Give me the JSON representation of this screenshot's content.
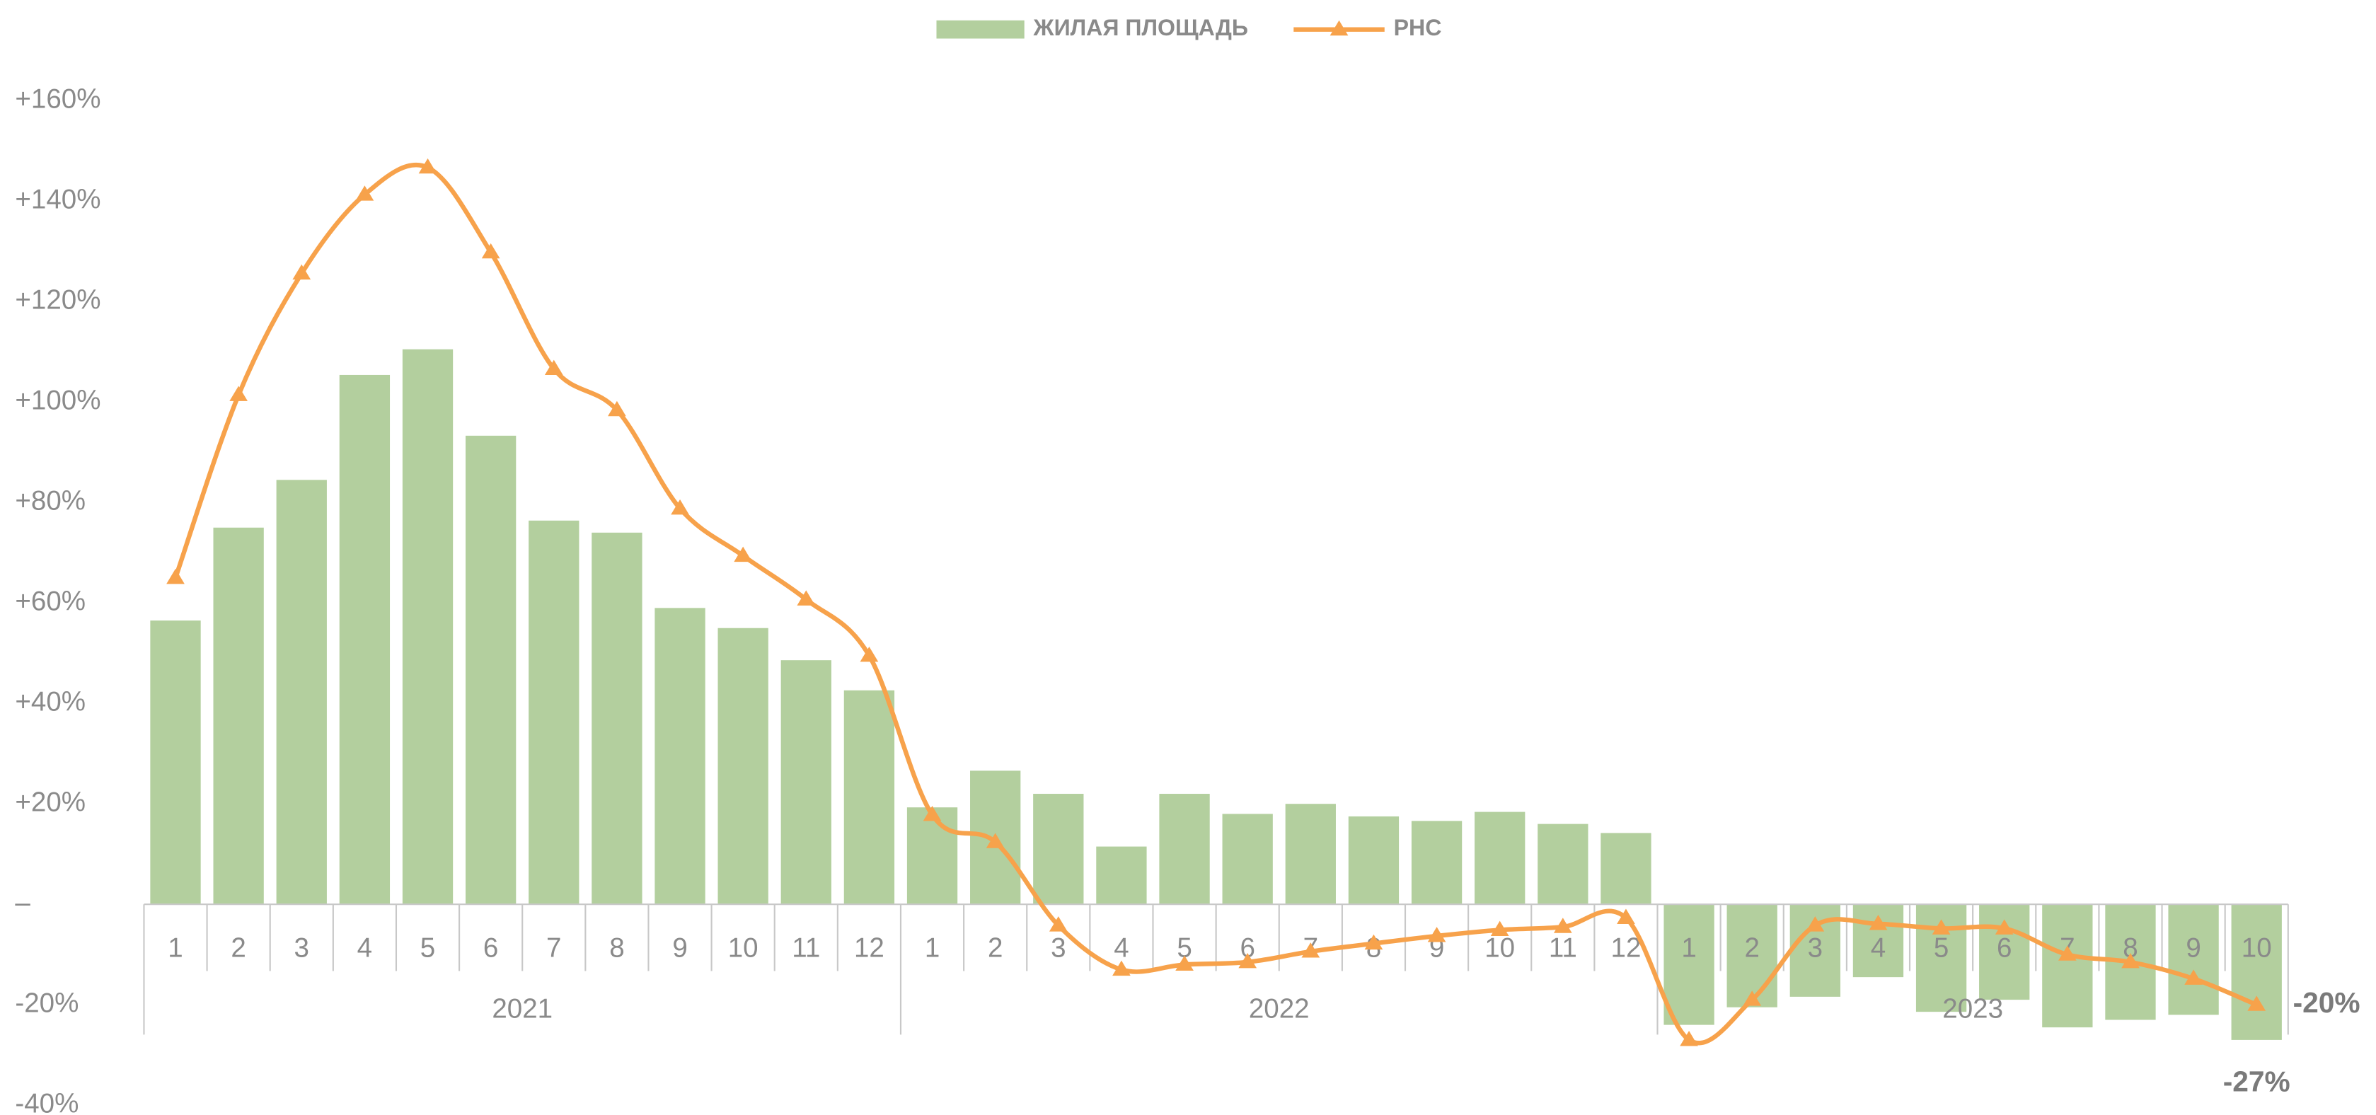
{
  "chart_data": {
    "type": "bar-line",
    "categories": [
      "1",
      "2",
      "3",
      "4",
      "5",
      "6",
      "7",
      "8",
      "9",
      "10",
      "11",
      "12",
      "1",
      "2",
      "3",
      "4",
      "5",
      "6",
      "7",
      "8",
      "9",
      "10",
      "11",
      "12",
      "1",
      "2",
      "3",
      "4",
      "5",
      "6",
      "7",
      "8",
      "9",
      "10"
    ],
    "groups": [
      "2021",
      "2022",
      "2023"
    ],
    "ylim": [
      -40,
      160
    ],
    "yticks": [
      {
        "value": -40,
        "label": "-40%"
      },
      {
        "value": -20,
        "label": "-20%"
      },
      {
        "value": 0,
        "label": "–"
      },
      {
        "value": 20,
        "label": "+20%"
      },
      {
        "value": 40,
        "label": "+40%"
      },
      {
        "value": 60,
        "label": "+60%"
      },
      {
        "value": 80,
        "label": "+80%"
      },
      {
        "value": 100,
        "label": "+100%"
      },
      {
        "value": 120,
        "label": "+120%"
      },
      {
        "value": 140,
        "label": "+140%"
      },
      {
        "value": 160,
        "label": "+160%"
      }
    ],
    "grid": false,
    "legend": "top",
    "series": [
      {
        "name": "ЖИЛАЯ ПЛОЩАДЬ",
        "kind": "bar",
        "color": "#b3cf9e",
        "values": [
          56.5,
          75,
          84.5,
          105.4,
          110.5,
          93.3,
          76.4,
          74,
          59,
          55,
          48.6,
          42.6,
          19.3,
          26.6,
          22,
          11.5,
          22,
          18,
          20,
          17.5,
          16.6,
          18.4,
          16,
          14.2,
          -24,
          -20.5,
          -18.4,
          -14.5,
          -21.4,
          -19,
          -24.5,
          -23,
          -22,
          -27
        ],
        "value_labels": [
          null,
          null,
          null,
          null,
          null,
          null,
          null,
          null,
          null,
          null,
          null,
          null,
          null,
          null,
          null,
          null,
          null,
          null,
          null,
          null,
          null,
          null,
          null,
          null,
          null,
          null,
          null,
          null,
          null,
          null,
          null,
          null,
          null,
          "-27%"
        ]
      },
      {
        "name": "РНС",
        "kind": "line",
        "color": "#f7a24b",
        "values": [
          65,
          101.4,
          125.6,
          141.3,
          146.7,
          129.8,
          106.6,
          98.4,
          78.8,
          69.4,
          60.7,
          49.5,
          17.8,
          12.4,
          -4.2,
          -13,
          -12,
          -11.5,
          -9.4,
          -7.8,
          -6.3,
          -5.1,
          -4.5,
          -2.7,
          -27,
          -19,
          -4.2,
          -3.9,
          -4.8,
          -4.8,
          -10,
          -11.5,
          -14.8,
          -20
        ],
        "value_labels": [
          null,
          null,
          null,
          null,
          null,
          null,
          null,
          null,
          null,
          null,
          null,
          null,
          null,
          null,
          null,
          null,
          null,
          null,
          null,
          null,
          null,
          null,
          null,
          null,
          null,
          null,
          null,
          null,
          null,
          null,
          null,
          null,
          null,
          "-20%"
        ]
      }
    ]
  }
}
